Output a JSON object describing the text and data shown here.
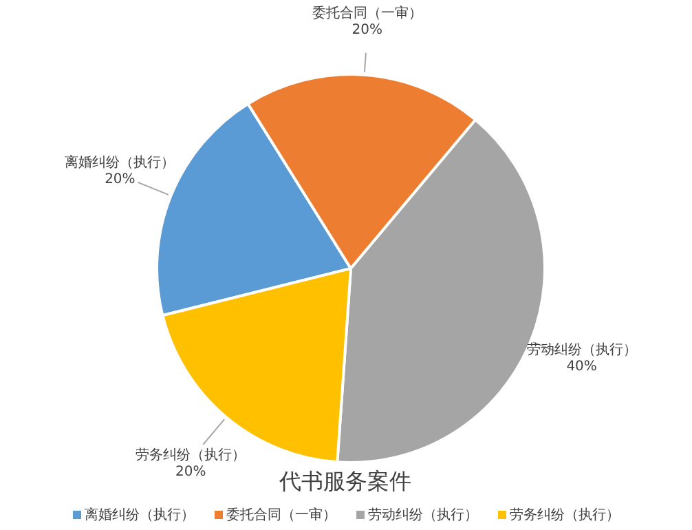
{
  "chart_data": {
    "type": "pie",
    "title": "代书服务案件",
    "categories": [
      "离婚纠纷（执行）",
      "委托合同（一审）",
      "劳动纠纷（执行）",
      "劳务纠纷（执行）"
    ],
    "values": [
      20,
      20,
      40,
      20
    ],
    "colors": [
      "#5b9bd5",
      "#ed7d31",
      "#a5a5a5",
      "#ffc000"
    ],
    "value_labels": [
      "20%",
      "20%",
      "40%",
      "20%"
    ],
    "legend": "bottom"
  }
}
